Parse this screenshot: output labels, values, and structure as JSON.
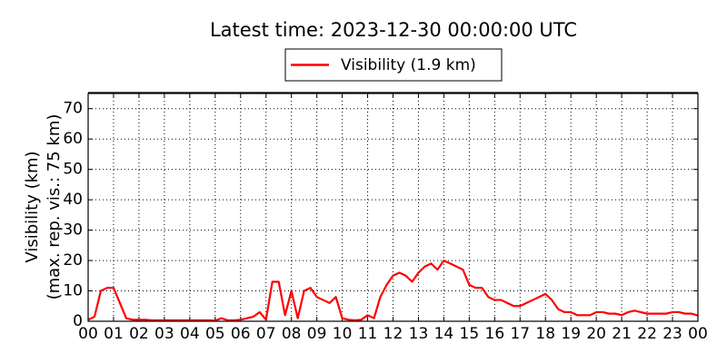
{
  "chart_data": {
    "type": "line",
    "title": "Latest time: 2023-12-30 00:00:00 UTC",
    "ylabel": [
      "Visibility (km)",
      "(max. rep. vis.: 75 km)"
    ],
    "x": [
      0,
      0.25,
      0.5,
      0.75,
      1,
      1.25,
      1.5,
      1.75,
      2,
      2.25,
      2.5,
      2.75,
      3,
      3.25,
      3.5,
      3.75,
      4,
      4.25,
      4.5,
      4.75,
      5,
      5.25,
      5.5,
      5.75,
      6,
      6.25,
      6.5,
      6.75,
      7,
      7.25,
      7.5,
      7.75,
      8,
      8.25,
      8.5,
      8.75,
      9,
      9.25,
      9.5,
      9.75,
      10,
      10.25,
      10.5,
      10.75,
      11,
      11.25,
      11.5,
      11.75,
      12,
      12.25,
      12.5,
      12.75,
      13,
      13.25,
      13.5,
      13.75,
      14,
      14.25,
      14.5,
      14.75,
      15,
      15.25,
      15.5,
      15.75,
      16,
      16.25,
      16.5,
      16.75,
      17,
      17.25,
      17.5,
      17.75,
      18,
      18.25,
      18.5,
      18.75,
      19,
      19.25,
      19.5,
      19.75,
      20,
      20.25,
      20.5,
      20.75,
      21,
      21.25,
      21.5,
      21.75,
      22,
      22.25,
      22.5,
      22.75,
      23,
      23.25,
      23.5,
      23.75,
      24
    ],
    "series": [
      {
        "name": "Visibility (1.9 km)",
        "color": "#ff0000",
        "values": [
          0.5,
          1.5,
          10,
          11,
          11,
          6,
          1,
          0.5,
          0.5,
          0.5,
          0.3,
          0.3,
          0.3,
          0.3,
          0.3,
          0.3,
          0.3,
          0.3,
          0.3,
          0.3,
          0.2,
          1,
          0.3,
          0.3,
          0.5,
          1,
          1.5,
          3,
          0.5,
          13,
          13,
          2,
          10,
          1,
          10,
          11,
          8,
          7,
          6,
          8,
          1,
          0.5,
          0.3,
          0.5,
          2,
          1,
          8,
          12,
          15,
          16,
          15,
          13,
          16,
          18,
          19,
          17,
          20,
          19,
          18,
          17,
          12,
          11,
          11,
          8,
          7,
          7,
          6,
          5,
          5,
          6,
          7,
          8,
          9,
          7,
          4,
          3,
          3,
          2,
          2,
          2,
          3,
          3,
          2.5,
          2.5,
          2,
          3,
          3.5,
          3,
          2.5,
          2.5,
          2.5,
          2.5,
          3,
          3,
          2.5,
          2.5,
          1.9
        ]
      }
    ],
    "xlim": [
      0,
      24
    ],
    "xticks": [
      {
        "value": 0,
        "label": "00"
      },
      {
        "value": 1,
        "label": "01"
      },
      {
        "value": 2,
        "label": "02"
      },
      {
        "value": 3,
        "label": "03"
      },
      {
        "value": 4,
        "label": "04"
      },
      {
        "value": 5,
        "label": "05"
      },
      {
        "value": 6,
        "label": "06"
      },
      {
        "value": 7,
        "label": "07"
      },
      {
        "value": 8,
        "label": "08"
      },
      {
        "value": 9,
        "label": "09"
      },
      {
        "value": 10,
        "label": "10"
      },
      {
        "value": 11,
        "label": "11"
      },
      {
        "value": 12,
        "label": "12"
      },
      {
        "value": 13,
        "label": "13"
      },
      {
        "value": 14,
        "label": "14"
      },
      {
        "value": 15,
        "label": "15"
      },
      {
        "value": 16,
        "label": "16"
      },
      {
        "value": 17,
        "label": "17"
      },
      {
        "value": 18,
        "label": "18"
      },
      {
        "value": 19,
        "label": "19"
      },
      {
        "value": 20,
        "label": "20"
      },
      {
        "value": 21,
        "label": "21"
      },
      {
        "value": 22,
        "label": "22"
      },
      {
        "value": 23,
        "label": "23"
      },
      {
        "value": 24,
        "label": "00"
      }
    ],
    "ylim": [
      0,
      75
    ],
    "yticks": [
      0,
      10,
      20,
      30,
      40,
      50,
      60,
      70
    ],
    "grid": true,
    "legend": "top"
  }
}
